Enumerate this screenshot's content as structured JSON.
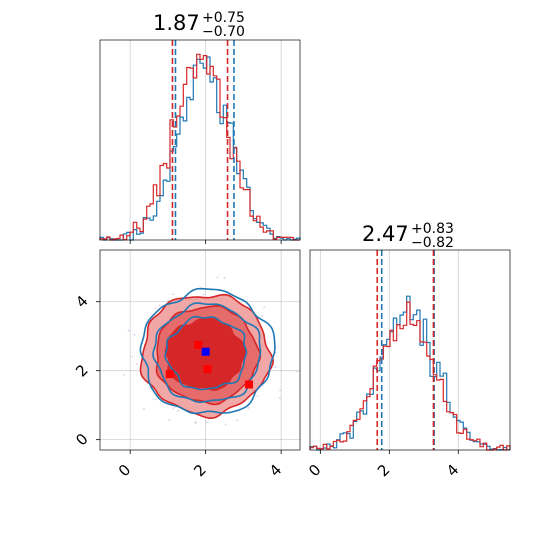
{
  "chart_data": {
    "type": "corner",
    "series": [
      {
        "name": "",
        "color": "#1f77b4"
      },
      {
        "name": "",
        "color": "#d62728"
      }
    ],
    "panels": {
      "hist_x": {
        "title": {
          "value": "1.87",
          "plus": "+0.75",
          "minus": "−0.70"
        },
        "xlim": [
          -0.8,
          4.5
        ],
        "quantile_lines": {
          "#1f77b4": [
            1.2,
            2.75
          ],
          "#d62728": [
            1.12,
            2.58
          ]
        }
      },
      "hist_y": {
        "title": {
          "value": "2.47",
          "plus": "+0.83",
          "minus": "−0.82"
        },
        "xlim": [
          -0.3,
          5.5
        ],
        "xticks": [
          "0",
          "2",
          "4"
        ],
        "quantile_lines": {
          "#1f77b4": [
            1.78,
            3.3
          ],
          "#d62728": [
            1.65,
            3.28
          ]
        }
      },
      "joint": {
        "xlim": [
          -0.8,
          4.5
        ],
        "ylim": [
          -0.3,
          5.5
        ],
        "xticks": [
          "0",
          "2",
          "4"
        ],
        "yticks": [
          "0",
          "2",
          "4"
        ],
        "center": [
          2.0,
          2.5
        ],
        "markers": [
          {
            "x": 2.0,
            "y": 2.55,
            "color": "#0000ff"
          },
          {
            "x": 1.8,
            "y": 2.75,
            "color": "#ff0000"
          },
          {
            "x": 1.05,
            "y": 1.9,
            "color": "#ff0000"
          },
          {
            "x": 3.15,
            "y": 1.6,
            "color": "#ff0000"
          },
          {
            "x": 2.05,
            "y": 2.05,
            "color": "#ff0000"
          }
        ]
      }
    },
    "grid": true
  }
}
